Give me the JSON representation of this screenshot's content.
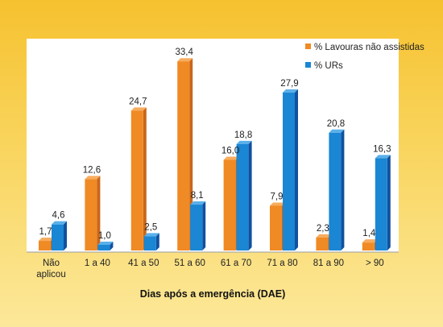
{
  "chart_data": {
    "type": "bar",
    "title": "",
    "xlabel": "Dias após a emergência (DAE)",
    "ylabel": "",
    "ylim": [
      0,
      36
    ],
    "grid": false,
    "legend_position": "top-right",
    "categories": [
      [
        "Não",
        "aplicou"
      ],
      [
        "1 a 40"
      ],
      [
        "41 a 50"
      ],
      [
        "51 a 60"
      ],
      [
        "61 a 70"
      ],
      [
        "71 a 80"
      ],
      [
        "81 a 90"
      ],
      [
        "> 90"
      ]
    ],
    "series": [
      {
        "name": "% Lavouras não assistidas",
        "values": [
          1.7,
          12.6,
          24.7,
          33.4,
          16.0,
          7.9,
          2.3,
          1.4
        ],
        "labels": [
          "1,7",
          "12,6",
          "24,7",
          "33,4",
          "16,0",
          "7,9",
          "2,3",
          "1,4"
        ],
        "color": "#f08a24"
      },
      {
        "name": "% URs",
        "values": [
          4.6,
          1.0,
          2.5,
          8.1,
          18.8,
          27.9,
          20.8,
          16.3
        ],
        "labels": [
          "4,6",
          "1,0",
          "2,5",
          "8,1",
          "18,8",
          "27,9",
          "20,8",
          "16,3"
        ],
        "color": "#1a86d4"
      }
    ]
  },
  "colors": {
    "background_top": "#f6c12f",
    "background_bottom": "#fce89a",
    "plot_area": "#ffffff",
    "orange_front": "#f08a24",
    "orange_side": "#c9661a",
    "orange_top": "#f7ac5e",
    "blue_front": "#1a86d4",
    "blue_side": "#11509f",
    "blue_top": "#5ab0ea"
  }
}
